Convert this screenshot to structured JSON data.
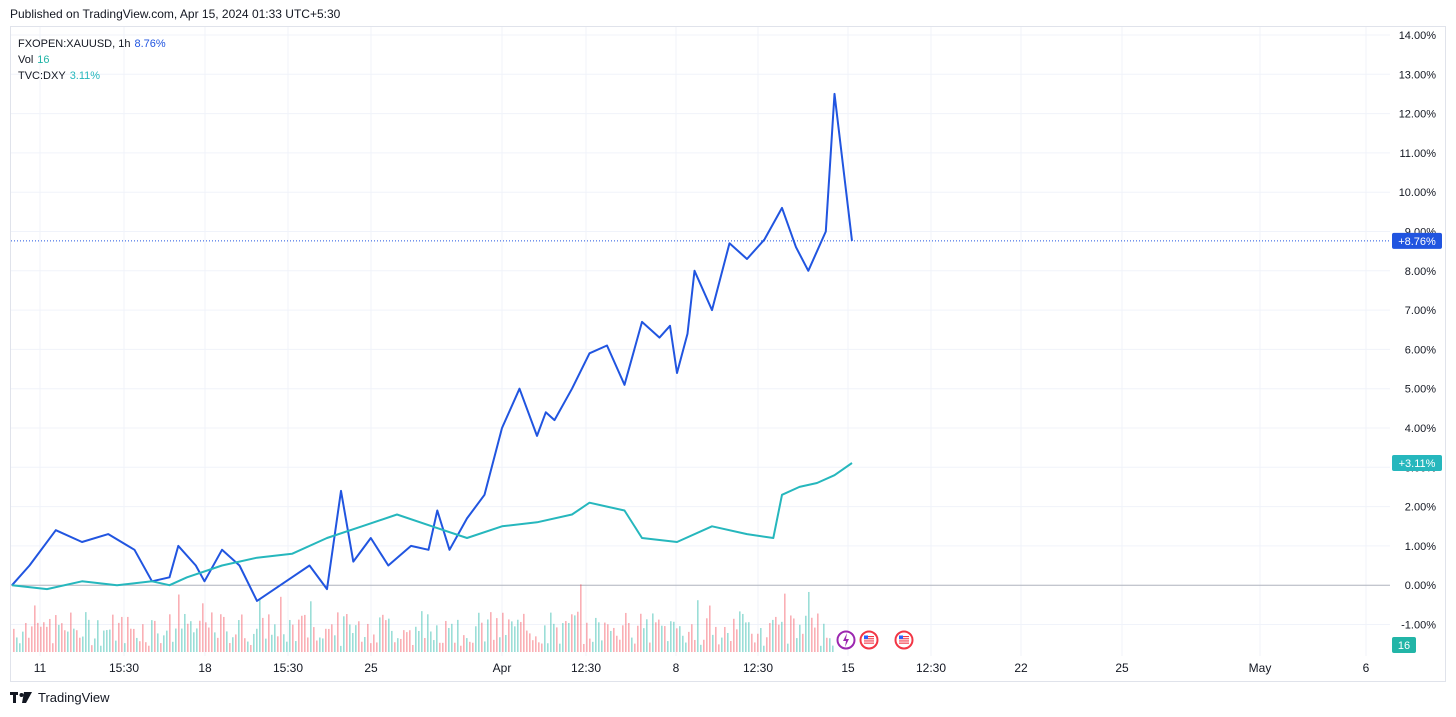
{
  "header": {
    "published": "Published on TradingView.com, Apr 15, 2024 01:33 UTC+5:30"
  },
  "legend": {
    "xau": {
      "label": "FXOPEN:XAUUSD, 1h",
      "value": "8.76%",
      "color": "#2155e0"
    },
    "vol": {
      "label": "Vol",
      "value": "16",
      "color": "#22b5a7"
    },
    "dxy": {
      "label": "TVC:DXY",
      "value": "3.11%",
      "color": "#26b7bd"
    }
  },
  "badges": {
    "xau": "+8.76%",
    "dxy": "+3.11%",
    "vol": "16"
  },
  "footer": {
    "brand": "TradingView",
    "logo_icon": "tradingview-logo-icon"
  },
  "event_icons": [
    "lightning-icon",
    "us-flag-icon",
    "us-flag-icon"
  ],
  "chart_data": {
    "type": "line",
    "x_ticks": [
      "11",
      "15:30",
      "18",
      "15:30",
      "25",
      "Apr",
      "12:30",
      "8",
      "12:30",
      "15",
      "12:30",
      "22",
      "25",
      "May",
      "6"
    ],
    "y_ticks": [
      "14.00%",
      "13.00%",
      "12.00%",
      "11.00%",
      "10.00%",
      "9.00%",
      "8.00%",
      "7.00%",
      "6.00%",
      "5.00%",
      "4.00%",
      "3.00%",
      "2.00%",
      "1.00%",
      "0.00%",
      "-1.00%"
    ],
    "ylim": [
      -1.8,
      14.2
    ],
    "grid": true,
    "series": [
      {
        "name": "FXOPEN:XAUUSD, 1h",
        "color": "#2155e0",
        "x": [
          0,
          1,
          2.5,
          4,
          5.5,
          7,
          8,
          9,
          9.5,
          10.5,
          11,
          12,
          13,
          14,
          16,
          17,
          18,
          18.8,
          19.5,
          20.5,
          21.5,
          22.8,
          23.8,
          24.3,
          25,
          26,
          27,
          28,
          29,
          30,
          30.5,
          31,
          32,
          33,
          34,
          35,
          36,
          37,
          37.6,
          38,
          38.6,
          39,
          40,
          41,
          42,
          43,
          44,
          44.8,
          45.5,
          46.5,
          47,
          48
        ],
        "y": [
          0.0,
          0.5,
          1.4,
          1.1,
          1.3,
          0.9,
          0.1,
          0.2,
          1.0,
          0.5,
          0.1,
          0.9,
          0.5,
          -0.4,
          0.2,
          0.5,
          -0.1,
          2.4,
          0.6,
          1.2,
          0.5,
          1.0,
          0.9,
          1.9,
          0.9,
          1.7,
          2.3,
          4.0,
          5.0,
          3.8,
          4.4,
          4.2,
          5.0,
          5.9,
          6.1,
          5.1,
          6.7,
          6.3,
          6.6,
          5.4,
          6.4,
          8.0,
          7.0,
          8.7,
          8.3,
          8.8,
          9.6,
          8.6,
          8.0,
          9.0,
          12.5,
          8.76
        ]
      },
      {
        "name": "TVC:DXY",
        "color": "#26b7bd",
        "x": [
          0,
          2,
          4,
          6,
          8,
          9,
          10,
          12,
          14,
          16,
          18,
          20,
          22,
          24,
          26,
          28,
          30,
          32,
          33,
          34,
          35,
          36,
          38,
          40,
          42,
          43.5,
          44,
          45,
          46,
          47,
          48
        ],
        "y": [
          0.0,
          -0.1,
          0.1,
          0.0,
          0.1,
          0.0,
          0.2,
          0.5,
          0.7,
          0.8,
          1.2,
          1.5,
          1.8,
          1.5,
          1.2,
          1.5,
          1.6,
          1.8,
          2.1,
          2.0,
          1.9,
          1.2,
          1.1,
          1.5,
          1.3,
          1.2,
          2.3,
          2.5,
          2.6,
          2.8,
          3.11
        ]
      }
    ]
  }
}
